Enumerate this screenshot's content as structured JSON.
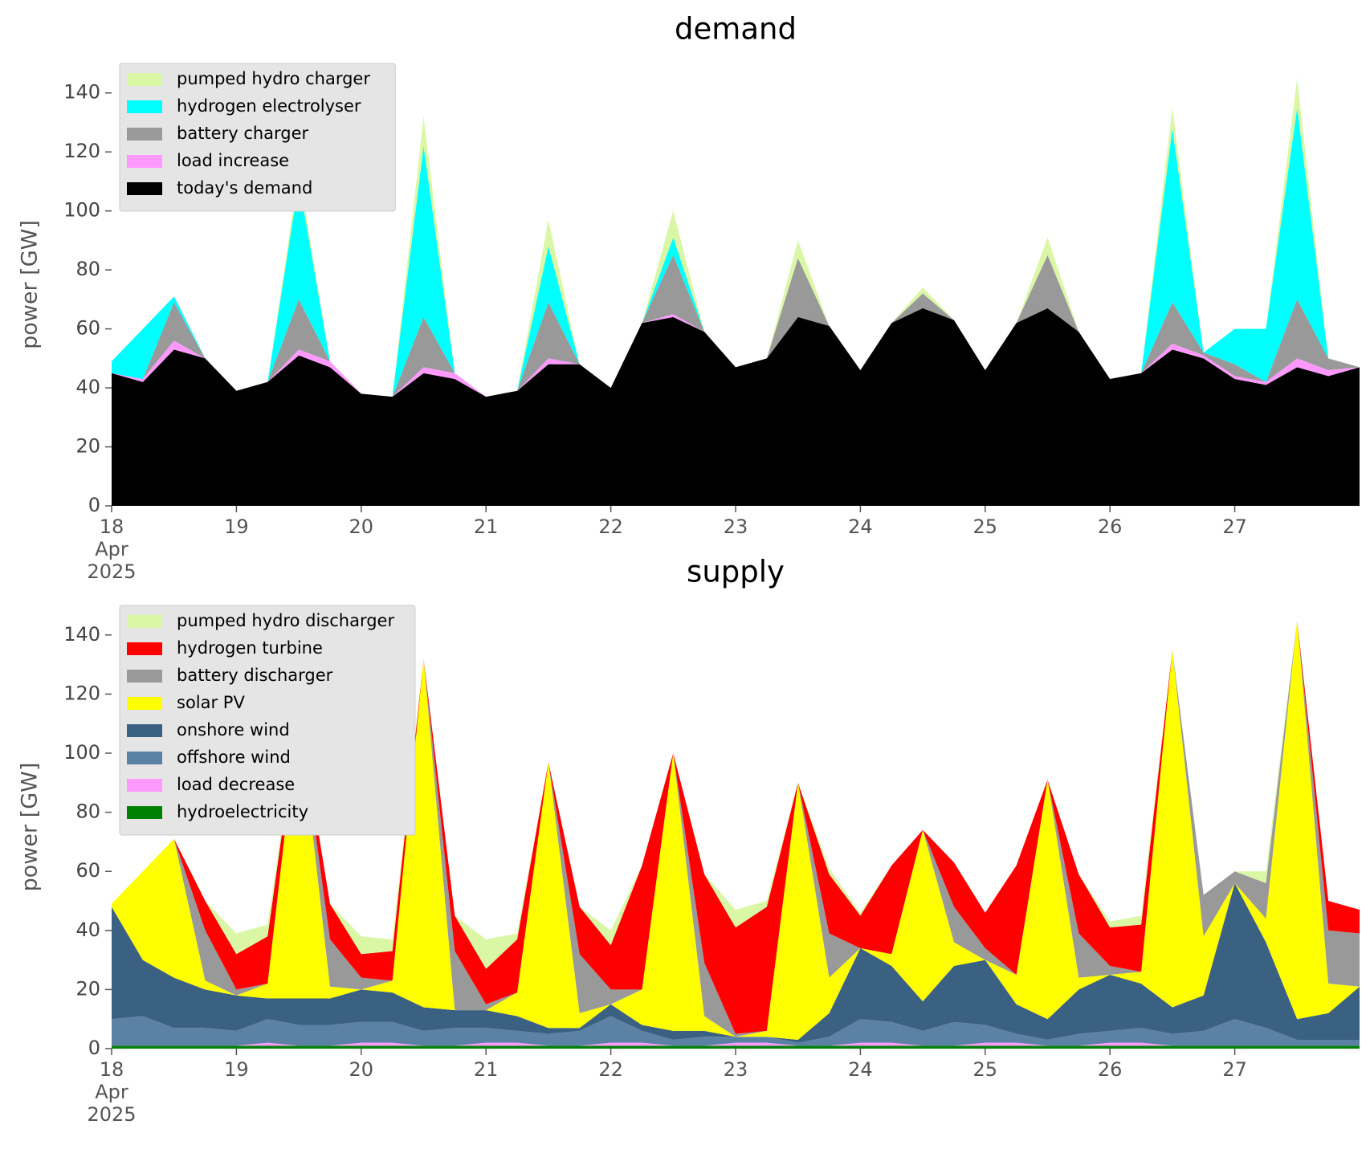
{
  "chart_data": [
    {
      "type": "stacked_area",
      "title": "demand",
      "ylabel": "power [GW]",
      "x": [
        0,
        6,
        12,
        18,
        24,
        30,
        36,
        42,
        48,
        54,
        60,
        66,
        72,
        78,
        84,
        90,
        96,
        102,
        108,
        114,
        120,
        126,
        132,
        138,
        144,
        150,
        156,
        162,
        168,
        174,
        180,
        186,
        192,
        198,
        204,
        210,
        216,
        222,
        228,
        234,
        240
      ],
      "xlim": [
        0,
        240
      ],
      "xticks": [
        {
          "value": 0,
          "label": "18\nApr\n2025"
        },
        {
          "value": 24,
          "label": "19"
        },
        {
          "value": 48,
          "label": "20"
        },
        {
          "value": 72,
          "label": "21"
        },
        {
          "value": 96,
          "label": "22"
        },
        {
          "value": 120,
          "label": "23"
        },
        {
          "value": 144,
          "label": "24"
        },
        {
          "value": 168,
          "label": "25"
        },
        {
          "value": 192,
          "label": "26"
        },
        {
          "value": 216,
          "label": "27"
        }
      ],
      "ylim": [
        0,
        150
      ],
      "yticks": [
        0,
        20,
        40,
        60,
        80,
        100,
        120,
        140
      ],
      "legend": "upper left",
      "series": [
        {
          "name": "today's demand",
          "color": "#000000",
          "values": [
            45,
            42,
            53,
            50,
            39,
            42,
            51,
            47,
            38,
            37,
            45,
            43,
            37,
            39,
            48,
            48,
            40,
            62,
            64,
            59,
            47,
            50,
            64,
            61,
            46,
            62,
            67,
            63,
            46,
            62,
            67,
            59,
            43,
            45,
            53,
            50,
            43,
            41,
            47,
            44,
            47
          ]
        },
        {
          "name": "load increase",
          "color": "#ff99ff",
          "values": [
            0,
            1,
            3,
            0,
            0,
            0,
            2,
            2,
            0,
            0,
            2,
            2,
            0,
            0,
            2,
            0,
            0,
            0,
            1,
            0,
            0,
            0,
            0,
            0,
            0,
            0,
            0,
            0,
            0,
            0,
            0,
            0,
            0,
            0,
            2,
            1,
            1,
            1,
            3,
            2,
            0
          ]
        },
        {
          "name": "battery charger",
          "color": "#999999",
          "values": [
            0,
            0,
            13,
            0,
            0,
            0,
            17,
            0,
            0,
            0,
            17,
            0,
            0,
            0,
            19,
            0,
            0,
            0,
            20,
            0,
            0,
            0,
            20,
            0,
            0,
            0,
            5,
            0,
            0,
            0,
            18,
            0,
            0,
            0,
            14,
            1,
            4,
            0,
            20,
            4,
            0
          ]
        },
        {
          "name": "hydrogen electrolyser",
          "color": "#00ffff",
          "values": [
            4,
            17,
            2,
            0,
            0,
            0,
            40,
            0,
            0,
            0,
            58,
            0,
            0,
            0,
            19,
            0,
            0,
            0,
            6,
            0,
            0,
            0,
            0,
            0,
            0,
            0,
            0,
            0,
            0,
            0,
            0,
            0,
            0,
            0,
            59,
            0,
            12,
            18,
            65,
            0,
            0
          ]
        },
        {
          "name": "pumped hydro charger",
          "color": "#daf7a6",
          "values": [
            0,
            0,
            0,
            0,
            0,
            0,
            4,
            0,
            0,
            0,
            10,
            0,
            0,
            0,
            9,
            0,
            0,
            0,
            9,
            0,
            0,
            0,
            6,
            0,
            0,
            0,
            2,
            0,
            0,
            0,
            6,
            0,
            0,
            0,
            7,
            0,
            0,
            0,
            10,
            0,
            0
          ]
        }
      ]
    },
    {
      "type": "stacked_area",
      "title": "supply",
      "ylabel": "power [GW]",
      "x": [
        0,
        6,
        12,
        18,
        24,
        30,
        36,
        42,
        48,
        54,
        60,
        66,
        72,
        78,
        84,
        90,
        96,
        102,
        108,
        114,
        120,
        126,
        132,
        138,
        144,
        150,
        156,
        162,
        168,
        174,
        180,
        186,
        192,
        198,
        204,
        210,
        216,
        222,
        228,
        234,
        240
      ],
      "xlim": [
        0,
        240
      ],
      "xticks": [
        {
          "value": 0,
          "label": "18\nApr\n2025"
        },
        {
          "value": 24,
          "label": "19"
        },
        {
          "value": 48,
          "label": "20"
        },
        {
          "value": 72,
          "label": "21"
        },
        {
          "value": 96,
          "label": "22"
        },
        {
          "value": 120,
          "label": "23"
        },
        {
          "value": 144,
          "label": "24"
        },
        {
          "value": 168,
          "label": "25"
        },
        {
          "value": 192,
          "label": "26"
        },
        {
          "value": 216,
          "label": "27"
        }
      ],
      "ylim": [
        0,
        150
      ],
      "yticks": [
        0,
        20,
        40,
        60,
        80,
        100,
        120,
        140
      ],
      "legend": "upper left",
      "series": [
        {
          "name": "hydroelectricity",
          "color": "#008000",
          "values": [
            1,
            1,
            1,
            1,
            1,
            1,
            1,
            1,
            1,
            1,
            1,
            1,
            1,
            1,
            1,
            1,
            1,
            1,
            1,
            1,
            1,
            1,
            1,
            1,
            1,
            1,
            1,
            1,
            1,
            1,
            1,
            1,
            1,
            1,
            1,
            1,
            1,
            1,
            1,
            1,
            1
          ]
        },
        {
          "name": "load decrease",
          "color": "#ff99ff",
          "values": [
            0,
            0,
            0,
            0,
            0,
            1,
            0,
            0,
            1,
            1,
            0,
            0,
            1,
            1,
            0,
            0,
            1,
            1,
            0,
            0,
            1,
            1,
            0,
            0,
            1,
            1,
            0,
            0,
            1,
            1,
            0,
            0,
            1,
            1,
            0,
            0,
            0,
            0,
            0,
            0,
            0
          ]
        },
        {
          "name": "offshore wind",
          "color": "#5b81a5",
          "values": [
            9,
            10,
            6,
            6,
            5,
            8,
            7,
            7,
            7,
            7,
            5,
            6,
            5,
            4,
            4,
            5,
            9,
            4,
            2,
            3,
            2,
            2,
            1,
            3,
            8,
            7,
            5,
            8,
            6,
            3,
            2,
            4,
            4,
            5,
            4,
            5,
            9,
            6,
            2,
            2,
            2
          ]
        },
        {
          "name": "onshore wind",
          "color": "#3b6182",
          "values": [
            38,
            19,
            17,
            13,
            12,
            7,
            9,
            9,
            11,
            10,
            8,
            6,
            6,
            5,
            2,
            1,
            4,
            2,
            3,
            2,
            0,
            0,
            1,
            8,
            24,
            19,
            10,
            19,
            22,
            10,
            7,
            15,
            19,
            15,
            9,
            12,
            46,
            29,
            7,
            9,
            18
          ]
        },
        {
          "name": "solar PV",
          "color": "#ffff00",
          "values": [
            1,
            30,
            47,
            3,
            0,
            5,
            97,
            4,
            0,
            4,
            118,
            0,
            0,
            8,
            90,
            5,
            0,
            12,
            94,
            5,
            0,
            2,
            87,
            12,
            0,
            4,
            58,
            8,
            0,
            10,
            81,
            4,
            0,
            4,
            121,
            20,
            0,
            8,
            135,
            10,
            0
          ]
        },
        {
          "name": "battery discharger",
          "color": "#999999",
          "values": [
            0,
            0,
            0,
            17,
            2,
            0,
            0,
            16,
            4,
            0,
            0,
            20,
            2,
            0,
            0,
            20,
            5,
            0,
            0,
            18,
            1,
            0,
            0,
            15,
            0,
            0,
            0,
            12,
            4,
            0,
            0,
            15,
            3,
            0,
            0,
            14,
            4,
            12,
            0,
            18,
            18
          ]
        },
        {
          "name": "hydrogen turbine",
          "color": "#ff0000",
          "values": [
            0,
            0,
            0,
            10,
            12,
            16,
            0,
            12,
            8,
            10,
            0,
            12,
            12,
            18,
            0,
            16,
            15,
            42,
            0,
            30,
            36,
            42,
            0,
            20,
            11,
            30,
            0,
            15,
            12,
            37,
            0,
            20,
            13,
            16,
            0,
            0,
            0,
            0,
            0,
            10,
            8
          ]
        },
        {
          "name": "pumped hydro discharger",
          "color": "#daf7a6",
          "values": [
            0,
            0,
            0,
            0,
            7,
            4,
            0,
            0,
            6,
            4,
            0,
            0,
            10,
            2,
            0,
            0,
            5,
            0,
            0,
            0,
            6,
            2,
            0,
            2,
            1,
            0,
            0,
            0,
            0,
            0,
            0,
            0,
            2,
            3,
            0,
            0,
            0,
            4,
            0,
            0,
            0
          ]
        }
      ]
    }
  ]
}
